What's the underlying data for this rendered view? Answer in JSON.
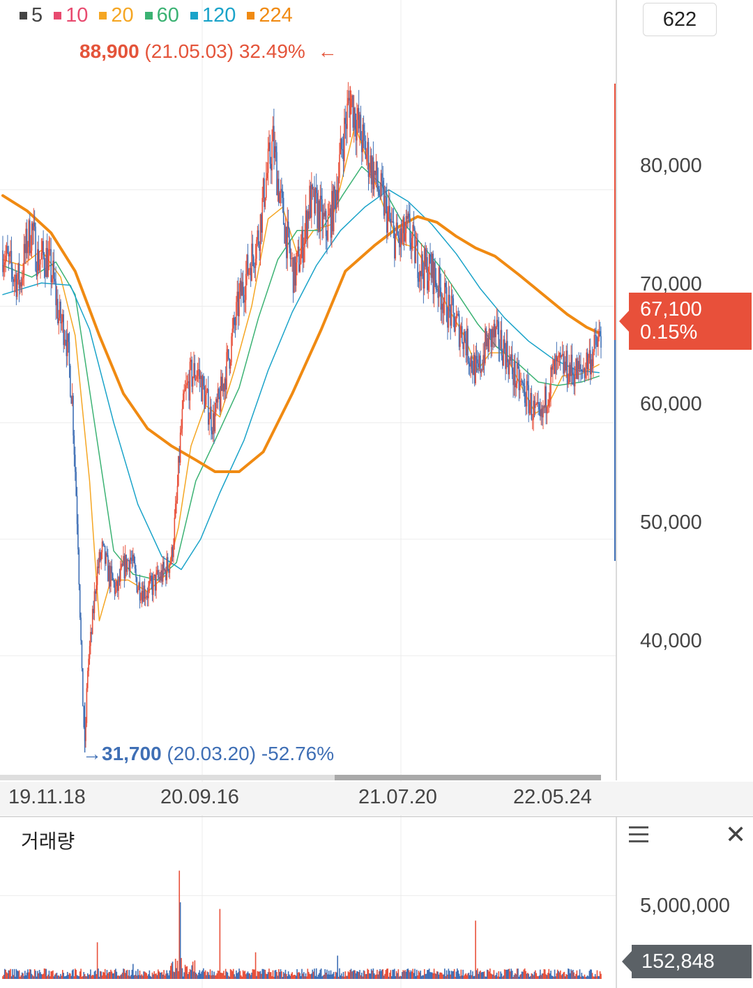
{
  "chart_data": {
    "type": "candlestick-line",
    "legend": [
      {
        "label": "5",
        "color": "#444444"
      },
      {
        "label": "10",
        "color": "#e84a6f"
      },
      {
        "label": "20",
        "color": "#f5a623"
      },
      {
        "label": "60",
        "color": "#3bb273"
      },
      {
        "label": "120",
        "color": "#1aa3c9"
      },
      {
        "label": "224",
        "color": "#f08a12"
      }
    ],
    "count_label": "622",
    "y_ticks": [
      "80,000",
      "70,000",
      "60,000",
      "50,000",
      "40,000"
    ],
    "y_tick_values": [
      80000,
      70000,
      60000,
      50000,
      40000
    ],
    "ylim": [
      30500,
      91500
    ],
    "x_ticks": [
      "19.11.18",
      "20.09.16",
      "21.07.20",
      "22.05.24"
    ],
    "high": {
      "value": "88,900",
      "date": "(21.05.03)",
      "change": "32.49%",
      "arrow": "←"
    },
    "low": {
      "value": "31,700",
      "date": "(20.03.20)",
      "change": "-52.76%",
      "arrow": "→"
    },
    "current": {
      "price": "67,100",
      "change": "0.15%"
    },
    "price_series": {
      "x_range": [
        0,
        620
      ],
      "points": [
        [
          0,
          74800
        ],
        [
          10,
          72800
        ],
        [
          18,
          72000
        ],
        [
          25,
          75500
        ],
        [
          30,
          76600
        ],
        [
          36,
          74000
        ],
        [
          45,
          74200
        ],
        [
          52,
          72500
        ],
        [
          58,
          69000
        ],
        [
          65,
          68000
        ],
        [
          72,
          62000
        ],
        [
          78,
          50000
        ],
        [
          82,
          38000
        ],
        [
          85,
          32000
        ],
        [
          88,
          39000
        ],
        [
          92,
          42000
        ],
        [
          97,
          47000
        ],
        [
          103,
          49000
        ],
        [
          110,
          47000
        ],
        [
          118,
          45500
        ],
        [
          125,
          47500
        ],
        [
          132,
          48500
        ],
        [
          140,
          46000
        ],
        [
          150,
          45500
        ],
        [
          160,
          46500
        ],
        [
          168,
          47200
        ],
        [
          175,
          48500
        ],
        [
          180,
          53000
        ],
        [
          184,
          58500
        ],
        [
          188,
          62000
        ],
        [
          195,
          64000
        ],
        [
          202,
          64500
        ],
        [
          210,
          62000
        ],
        [
          218,
          60000
        ],
        [
          225,
          62000
        ],
        [
          235,
          66000
        ],
        [
          245,
          70500
        ],
        [
          255,
          73500
        ],
        [
          265,
          76000
        ],
        [
          272,
          80500
        ],
        [
          280,
          84000
        ],
        [
          288,
          79000
        ],
        [
          296,
          75000
        ],
        [
          302,
          72500
        ],
        [
          310,
          75000
        ],
        [
          318,
          79000
        ],
        [
          328,
          78000
        ],
        [
          335,
          76500
        ],
        [
          343,
          78500
        ],
        [
          352,
          84000
        ],
        [
          360,
          88000
        ],
        [
          368,
          85500
        ],
        [
          375,
          83500
        ],
        [
          382,
          82000
        ],
        [
          390,
          80000
        ],
        [
          398,
          78000
        ],
        [
          405,
          76000
        ],
        [
          412,
          75500
        ],
        [
          420,
          76500
        ],
        [
          428,
          74500
        ],
        [
          435,
          73200
        ],
        [
          445,
          73000
        ],
        [
          455,
          71000
        ],
        [
          463,
          69500
        ],
        [
          470,
          68500
        ],
        [
          478,
          67500
        ],
        [
          485,
          65500
        ],
        [
          492,
          64000
        ],
        [
          500,
          66500
        ],
        [
          508,
          67500
        ],
        [
          515,
          67000
        ],
        [
          522,
          66000
        ],
        [
          530,
          64000
        ],
        [
          538,
          63000
        ],
        [
          545,
          62000
        ],
        [
          552,
          60500
        ],
        [
          558,
          60000
        ],
        [
          565,
          63000
        ],
        [
          572,
          64500
        ],
        [
          580,
          64800
        ],
        [
          590,
          64500
        ],
        [
          598,
          64200
        ],
        [
          605,
          65200
        ],
        [
          612,
          66000
        ],
        [
          618,
          67100
        ]
      ]
    },
    "ma_series": [
      {
        "label": "20",
        "color": "#f5a623",
        "width": 1.5,
        "points": [
          [
            0,
            74000
          ],
          [
            20,
            73500
          ],
          [
            40,
            74800
          ],
          [
            60,
            72500
          ],
          [
            75,
            67500
          ],
          [
            90,
            55000
          ],
          [
            100,
            43000
          ],
          [
            112,
            46500
          ],
          [
            130,
            46500
          ],
          [
            150,
            45500
          ],
          [
            170,
            47000
          ],
          [
            182,
            51000
          ],
          [
            195,
            58000
          ],
          [
            210,
            61500
          ],
          [
            225,
            60500
          ],
          [
            240,
            64500
          ],
          [
            258,
            70000
          ],
          [
            275,
            77500
          ],
          [
            290,
            78500
          ],
          [
            305,
            74500
          ],
          [
            322,
            76500
          ],
          [
            340,
            77000
          ],
          [
            352,
            81000
          ],
          [
            365,
            85500
          ],
          [
            380,
            82000
          ],
          [
            395,
            78500
          ],
          [
            410,
            75500
          ],
          [
            428,
            75000
          ],
          [
            445,
            72500
          ],
          [
            462,
            69800
          ],
          [
            478,
            67500
          ],
          [
            492,
            64500
          ],
          [
            505,
            66000
          ],
          [
            520,
            66000
          ],
          [
            535,
            63500
          ],
          [
            552,
            60800
          ],
          [
            565,
            61500
          ],
          [
            580,
            64000
          ],
          [
            600,
            64200
          ],
          [
            618,
            65000
          ]
        ]
      },
      {
        "label": "60",
        "color": "#3bb273",
        "width": 1.5,
        "points": [
          [
            0,
            73500
          ],
          [
            30,
            72500
          ],
          [
            55,
            73800
          ],
          [
            75,
            71000
          ],
          [
            95,
            60000
          ],
          [
            115,
            49000
          ],
          [
            135,
            47000
          ],
          [
            160,
            46500
          ],
          [
            180,
            48000
          ],
          [
            200,
            55000
          ],
          [
            220,
            58500
          ],
          [
            245,
            63000
          ],
          [
            265,
            69000
          ],
          [
            285,
            74000
          ],
          [
            305,
            76500
          ],
          [
            330,
            76500
          ],
          [
            352,
            79500
          ],
          [
            372,
            82000
          ],
          [
            392,
            80500
          ],
          [
            412,
            77500
          ],
          [
            432,
            75500
          ],
          [
            452,
            73500
          ],
          [
            472,
            71000
          ],
          [
            492,
            68500
          ],
          [
            512,
            66500
          ],
          [
            535,
            65000
          ],
          [
            555,
            63500
          ],
          [
            575,
            63200
          ],
          [
            600,
            63500
          ],
          [
            618,
            64000
          ]
        ]
      },
      {
        "label": "120",
        "color": "#1aa3c9",
        "width": 1.5,
        "points": [
          [
            0,
            71000
          ],
          [
            40,
            72000
          ],
          [
            70,
            71800
          ],
          [
            90,
            68000
          ],
          [
            115,
            60000
          ],
          [
            140,
            53000
          ],
          [
            165,
            48500
          ],
          [
            185,
            47400
          ],
          [
            205,
            50000
          ],
          [
            225,
            54000
          ],
          [
            250,
            58500
          ],
          [
            275,
            64500
          ],
          [
            300,
            69500
          ],
          [
            325,
            73500
          ],
          [
            350,
            76500
          ],
          [
            375,
            78500
          ],
          [
            400,
            80000
          ],
          [
            420,
            79000
          ],
          [
            445,
            77000
          ],
          [
            470,
            74500
          ],
          [
            495,
            71500
          ],
          [
            520,
            69000
          ],
          [
            545,
            67000
          ],
          [
            570,
            65500
          ],
          [
            595,
            64500
          ],
          [
            618,
            64300
          ]
        ]
      },
      {
        "label": "224",
        "color": "#f08a12",
        "width": 4,
        "points": [
          [
            0,
            79500
          ],
          [
            25,
            78200
          ],
          [
            50,
            76300
          ],
          [
            75,
            73000
          ],
          [
            100,
            67500
          ],
          [
            125,
            62500
          ],
          [
            150,
            59500
          ],
          [
            175,
            58000
          ],
          [
            200,
            56800
          ],
          [
            220,
            55800
          ],
          [
            245,
            55800
          ],
          [
            270,
            57500
          ],
          [
            300,
            62500
          ],
          [
            330,
            68000
          ],
          [
            355,
            73000
          ],
          [
            385,
            75200
          ],
          [
            410,
            76800
          ],
          [
            430,
            77700
          ],
          [
            450,
            77200
          ],
          [
            470,
            76000
          ],
          [
            490,
            75000
          ],
          [
            510,
            74300
          ],
          [
            535,
            72700
          ],
          [
            560,
            71000
          ],
          [
            585,
            69300
          ],
          [
            605,
            68200
          ],
          [
            618,
            67700
          ]
        ]
      }
    ],
    "volume": {
      "title": "거래량",
      "y_tick": "5,000,000",
      "y_tick_value": 5000000,
      "ymax": 6900000,
      "current": "152,848",
      "spikes": [
        [
          98,
          2200000
        ],
        [
          135,
          900000
        ],
        [
          183,
          6500000
        ],
        [
          184,
          4600000
        ],
        [
          225,
          4200000
        ],
        [
          262,
          1600000
        ],
        [
          347,
          1400000
        ],
        [
          490,
          3500000
        ]
      ]
    }
  }
}
